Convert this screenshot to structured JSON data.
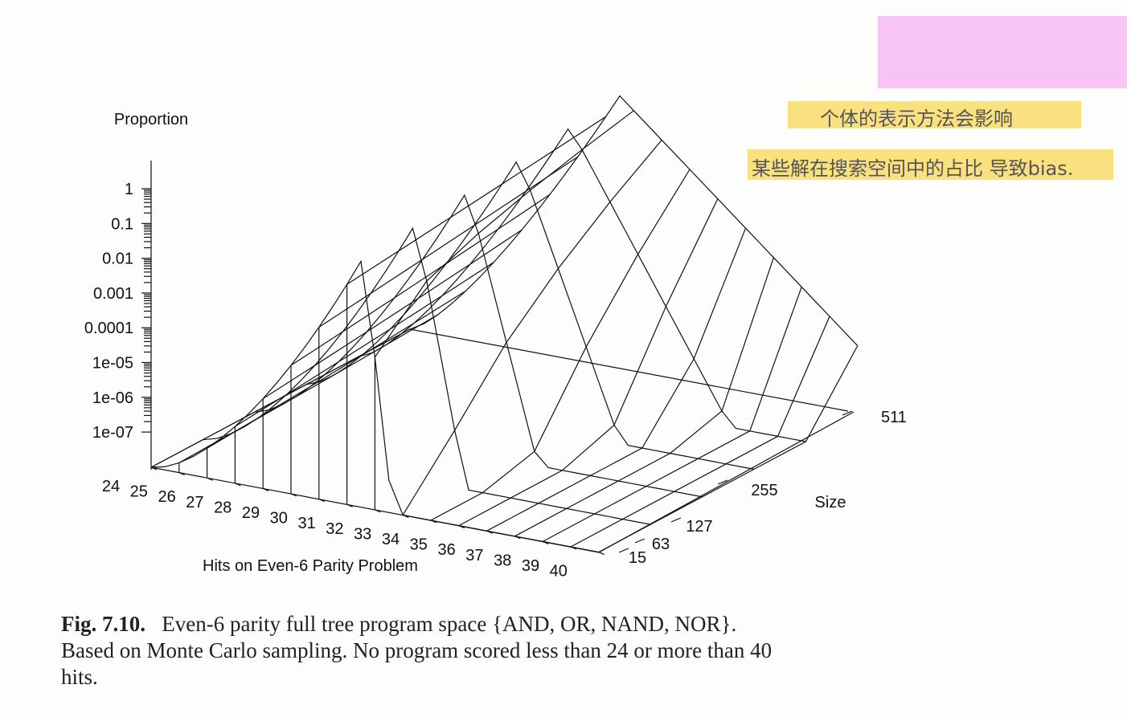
{
  "figure": {
    "z_axis_label": "Proportion",
    "z_ticks": [
      "1",
      "0.1",
      "0.01",
      "0.001",
      "0.0001",
      "1e-05",
      "1e-06",
      "1e-07"
    ],
    "x_axis_label": "Hits on Even-6 Parity Problem",
    "x_ticks": [
      "24",
      "25",
      "26",
      "27",
      "28",
      "29",
      "30",
      "31",
      "32",
      "33",
      "34",
      "35",
      "36",
      "37",
      "38",
      "39",
      "40"
    ],
    "y_axis_label": "Size",
    "y_ticks": [
      "15",
      "63",
      "127",
      "255",
      "511"
    ]
  },
  "caption": {
    "label": "Fig. 7.10.",
    "lines": [
      "Even-6 parity full tree program space {AND, OR, NAND, NOR}.",
      "Based on Monte Carlo sampling. No program scored less than 24 or more than 40",
      "hits."
    ]
  },
  "annotations": [
    "个体的表示方法会影响",
    "某些解在搜索空间中的占比 导致bias."
  ]
}
